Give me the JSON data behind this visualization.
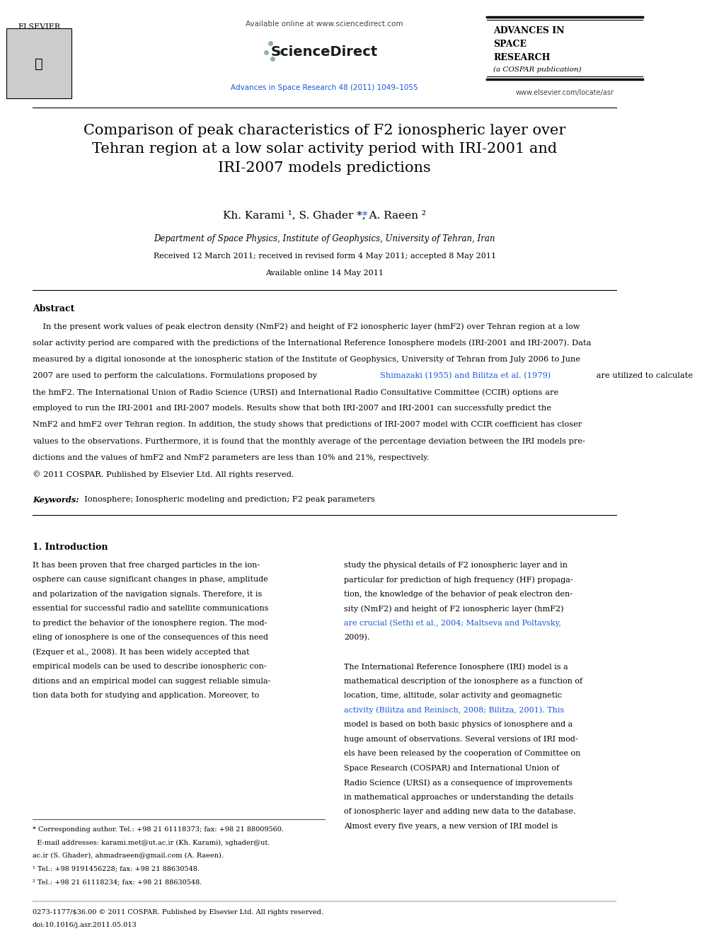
{
  "bg_color": "#ffffff",
  "page_width": 9.92,
  "page_height": 13.23,
  "header": {
    "available_online_text": "Available online at www.sciencedirect.com",
    "journal_ref": "Advances in Space Research 48 (2011) 1049–1055",
    "journal_name_line1": "ADVANCES IN",
    "journal_name_line2": "SPACE",
    "journal_name_line3": "RESEARCH",
    "journal_name_line4": "(a COSPAR publication)",
    "website": "www.elsevier.com/locate/asr"
  },
  "title": "Comparison of peak characteristics of F2 ionospheric layer over\nTehran region at a low solar activity period with IRI-2001 and\nIRI-2007 models predictions",
  "authors": "Kh. Karami",
  "authors_full": "Kh. Karami ¹, S. Ghader *, A. Raeen ²",
  "affiliation": "Department of Space Physics, Institute of Geophysics, University of Tehran, Iran",
  "received": "Received 12 March 2011; received in revised form 4 May 2011; accepted 8 May 2011",
  "available": "Available online 14 May 2011",
  "abstract_title": "Abstract",
  "abstract_text": "In the present work values of peak electron density (NmF2) and height of F2 ionospheric layer (hmF2) over Tehran region at a low\nsolar activity period are compared with the predictions of the International Reference Ionosphere models (IRI-2001 and IRI-2007). Data\nmeasured by a digital ionosonde at the ionospheric station of the Institute of Geophysics, University of Tehran from July 2006 to June\n2007 are used to perform the calculations. Formulations proposed by Shimazaki (1955) and Bilitza et al. (1979) are utilized to calculate\nthe hmF2. The International Union of Radio Science (URSI) and International Radio Consultative Committee (CCIR) options are\nemployed to run the IRI-2001 and IRI-2007 models. Results show that both IRI-2007 and IRI-2001 can successfully predict the\nNmF2 and hmF2 over Tehran region. In addition, the study shows that predictions of IRI-2007 model with CCIR coefficient has closer\nvalues to the observations. Furthermore, it is found that the monthly average of the percentage deviation between the IRI models pre-\ndictions and the values of hmF2 and NmF2 parameters are less than 10% and 21%, respectively.\n© 2011 COSPAR. Published by Elsevier Ltd. All rights reserved.",
  "keywords_label": "Keywords:",
  "keywords_text": "Ionosphere; Ionospheric modeling and prediction; F2 peak parameters",
  "section1_title": "1. Introduction",
  "section1_col1": "It has been proven that free charged particles in the ion-\nosphere can cause significant changes in phase, amplitude\nand polarization of the navigation signals. Therefore, it is\nessential for successful radio and satellite communications\nto predict the behavior of the ionosphere region. The mod-\neling of ionosphere is one of the consequences of this need\n(Ezquer et al., 2008). It has been widely accepted that\nempirical models can be used to describe ionospheric con-\nditions and an empirical model can suggest reliable simula-\ntion data both for studying and application. Moreover, to",
  "section1_col2": "study the physical details of F2 ionospheric layer and in\nparticular for prediction of high frequency (HF) propaga-\ntion, the knowledge of the behavior of peak electron den-\nsity (NmF2) and height of F2 ionospheric layer (hmF2)\nare crucial (Sethi et al., 2004; Maltseva and Poltavsky,\n2009).\n\nThe International Reference Ionosphere (IRI) model is a\nmathematical description of the ionosphere as a function of\nlocation, time, altitude, solar activity and geomagnetic\nactivity (Bilitza and Reinisch, 2008; Bilitza, 2001). This\nmodel is based on both basic physics of ionosphere and a\nhuge amount of observations. Several versions of IRI mod-\nels have been released by the cooperation of Committee on\nSpace Research (COSPAR) and International Union of\nRadio Science (URSI) as a consequence of improvements\nin mathematical approaches or understanding the details\nof ionospheric layer and adding new data to the database.\nAlmost every five years, a new version of IRI model is",
  "footer_left": "* Corresponding author. Tel.: +98 21 61118373; fax: +98 21 88009560.\n  E-mail addresses: karami.met@ut.ac.ir (Kh. Karami), sghader@ut.\nac.ir (S. Ghader), ahmadraeen@gmail.com (A. Raeen).\n¹ Tel.: +98 9191456228; fax: +98 21 88630548.\n² Tel.: +98 21 61118234; fax: +98 21 88630548.",
  "footer_bottom": "0273-1177/$36.00 © 2011 COSPAR. Published by Elsevier Ltd. All rights reserved.\ndoi:10.1016/j.asr.2011.05.013",
  "link_color": "#1a56db",
  "journal_ref_color": "#1a56db"
}
